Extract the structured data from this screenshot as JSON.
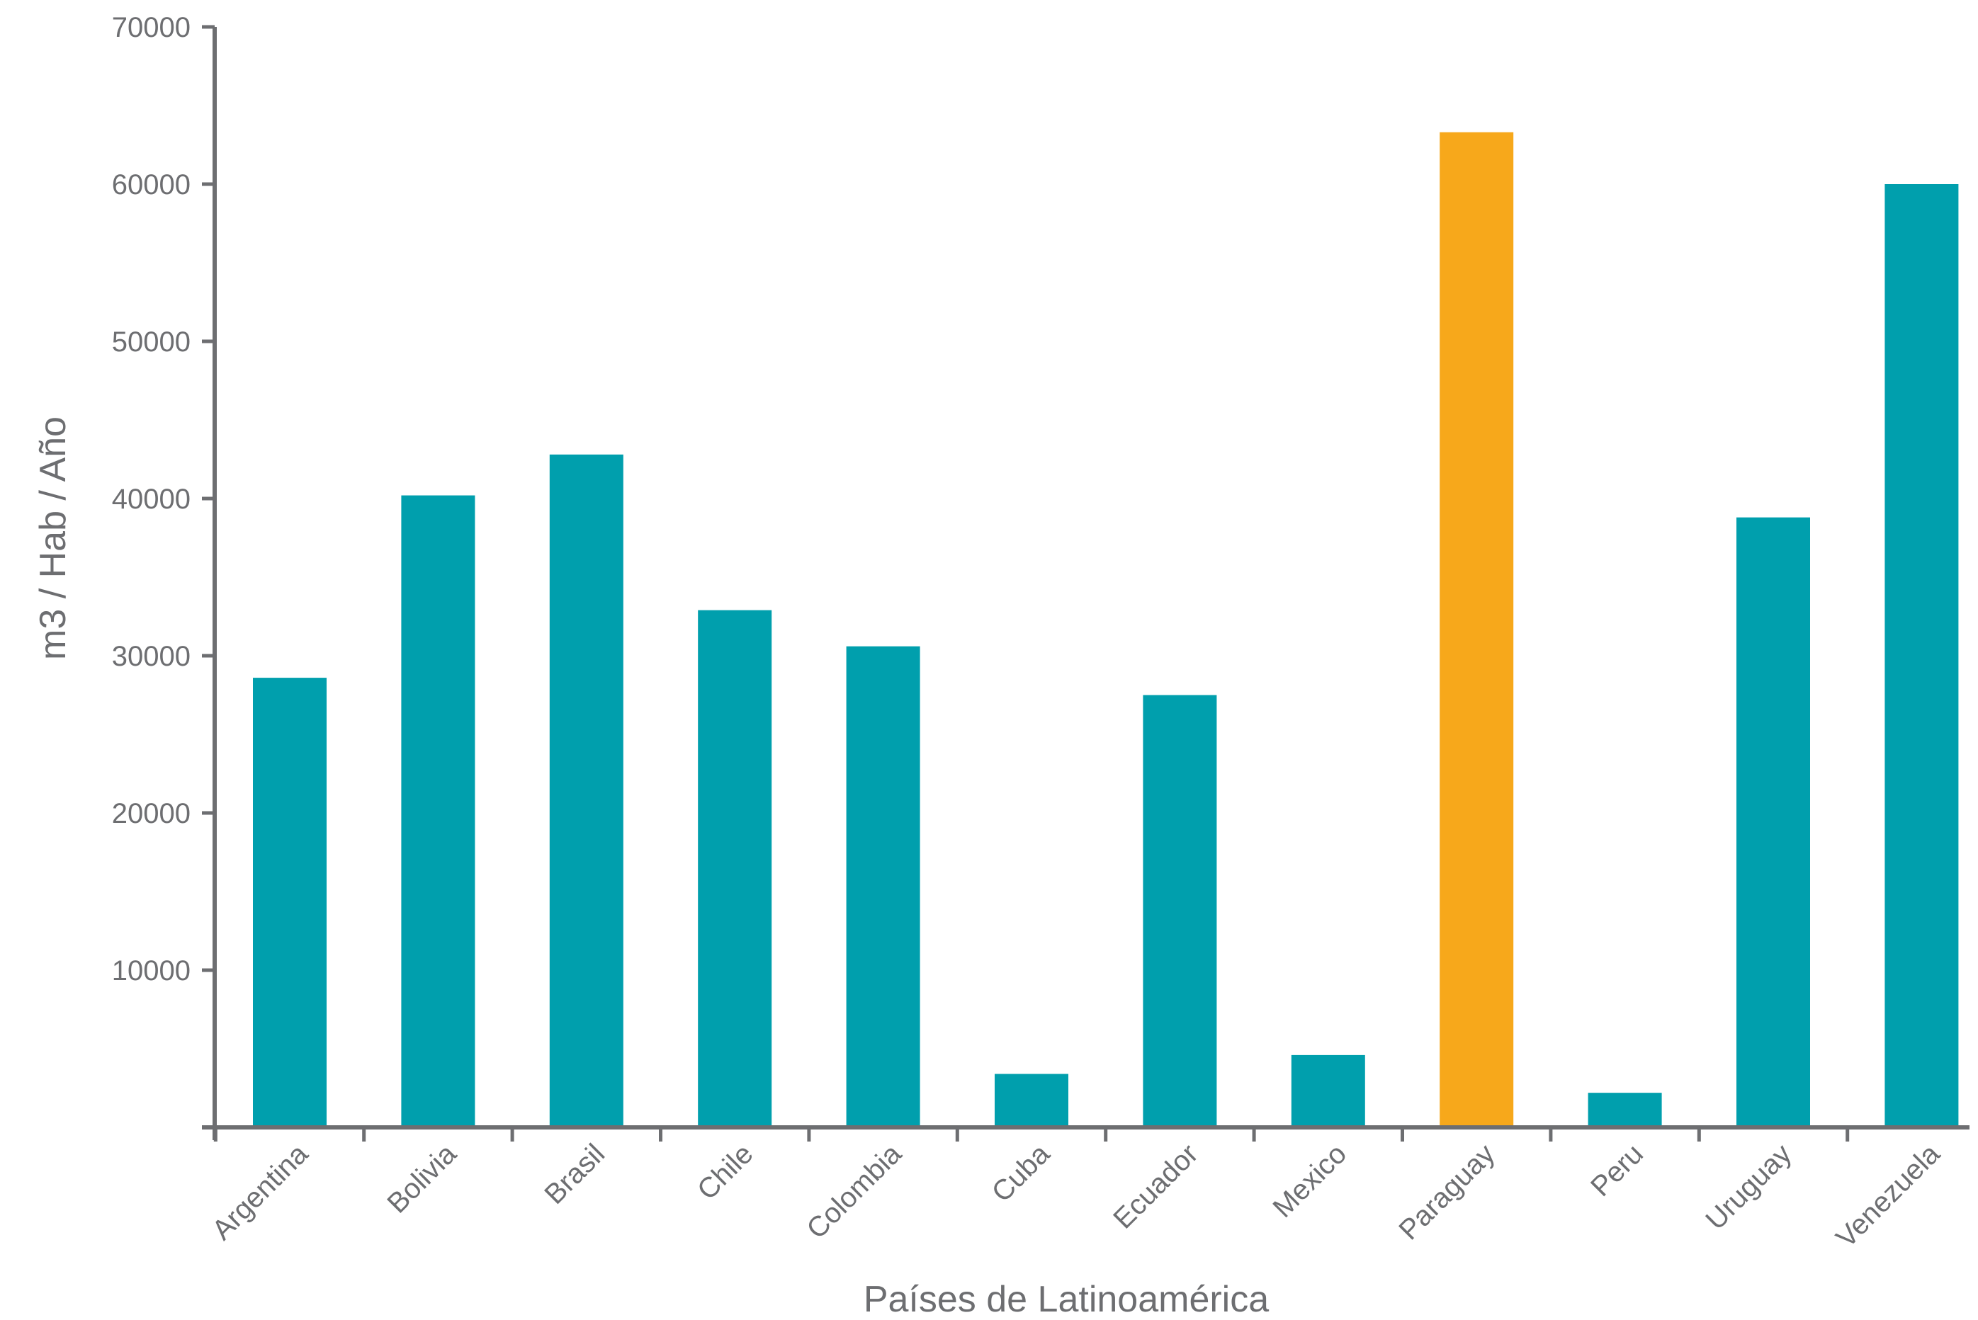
{
  "chart_data": {
    "type": "bar",
    "title": "",
    "xlabel": "Países de Latinoamérica",
    "ylabel": "m3 / Hab / Año",
    "categories": [
      "Argentina",
      "Bolivia",
      "Brasil",
      "Chile",
      "Colombia",
      "Cuba",
      "Ecuador",
      "Mexico",
      "Paraguay",
      "Peru",
      "Uruguay",
      "Venezuela"
    ],
    "values": [
      28600,
      40200,
      42800,
      32900,
      30600,
      3400,
      27500,
      4600,
      63300,
      2200,
      38800,
      60000
    ],
    "yticks": [
      10000,
      20000,
      30000,
      40000,
      50000,
      60000,
      70000
    ],
    "ytick_labels": [
      "10000",
      "20000",
      "30000",
      "40000",
      "50000",
      "60000",
      "70000"
    ],
    "ylim": [
      0,
      70000
    ],
    "grid": false,
    "legend": "none",
    "colors": {
      "default_bar": "#009fad",
      "highlight_bar": "#f7a81b",
      "axis": "#6d6e71"
    },
    "highlight_category": "Paraguay"
  }
}
